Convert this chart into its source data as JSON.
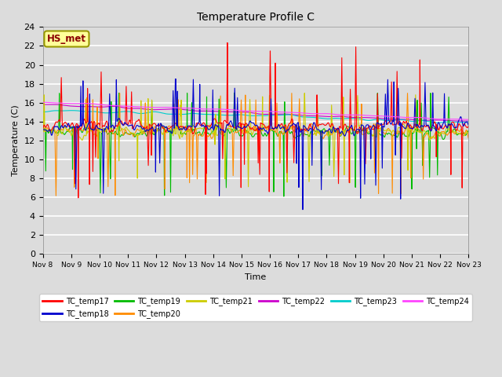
{
  "title": "Temperature Profile C",
  "xlabel": "Time",
  "ylabel": "Temperature (C)",
  "ylim": [
    0,
    24
  ],
  "yticks": [
    0,
    2,
    4,
    6,
    8,
    10,
    12,
    14,
    16,
    18,
    20,
    22,
    24
  ],
  "x_tick_labels": [
    "Nov 8",
    "Nov 9",
    "Nov 10",
    "Nov 11",
    "Nov 12",
    "Nov 13",
    "Nov 14",
    "Nov 15",
    "Nov 16",
    "Nov 17",
    "Nov 18",
    "Nov 19",
    "Nov 20",
    "Nov 21",
    "Nov 22",
    "Nov 23"
  ],
  "annotation_text": "HS_met",
  "annotation_color": "#8B0000",
  "annotation_bg": "#FFFF99",
  "bg_color": "#DCDCDC",
  "series_colors": {
    "TC_temp17": "#FF0000",
    "TC_temp18": "#0000CD",
    "TC_temp19": "#00BB00",
    "TC_temp20": "#FF8C00",
    "TC_temp21": "#CCCC00",
    "TC_temp22": "#CC00CC",
    "TC_temp23": "#00CCCC",
    "TC_temp24": "#FF44FF"
  },
  "legend_order": [
    "TC_temp17",
    "TC_temp18",
    "TC_temp19",
    "TC_temp20",
    "TC_temp21",
    "TC_temp22",
    "TC_temp23",
    "TC_temp24"
  ]
}
